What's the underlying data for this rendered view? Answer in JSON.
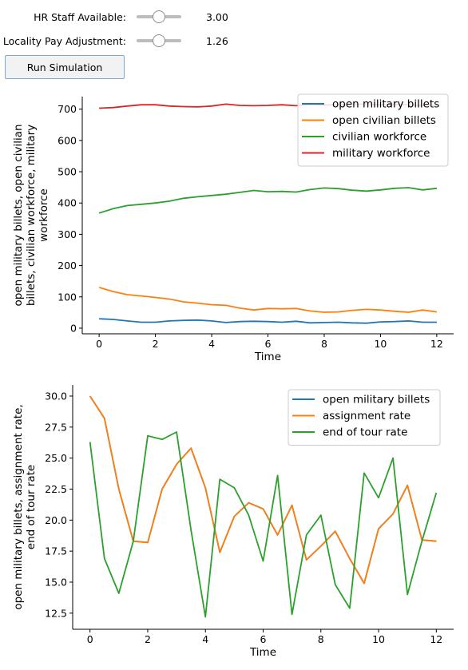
{
  "controls": {
    "hr_staff": {
      "label": "HR Staff Available:",
      "value_text": "3.00",
      "fraction": 0.5
    },
    "locality_pay": {
      "label": "Locality Pay Adjustment:",
      "value_text": "1.26",
      "fraction": 0.5
    },
    "run_label": "Run Simulation"
  },
  "colors": {
    "blue": "#1f77b4",
    "orange": "#ff7f0e",
    "green": "#2ca02c",
    "red": "#d62728"
  },
  "chart_data": [
    {
      "type": "line",
      "xlabel": "Time",
      "ylabel_lines": [
        "open military billets, open civilian",
        "billets, civilian workforce, military",
        "workforce"
      ],
      "xlim": [
        -0.6,
        12.6
      ],
      "ylim": [
        -18,
        740
      ],
      "xticks": [
        0,
        2,
        4,
        6,
        8,
        10,
        12
      ],
      "yticks": [
        0,
        100,
        200,
        300,
        400,
        500,
        600,
        700
      ],
      "legend": "top-right",
      "x": [
        0,
        0.5,
        1,
        1.5,
        2,
        2.5,
        3,
        3.5,
        4,
        4.5,
        5,
        5.5,
        6,
        6.5,
        7,
        7.5,
        8,
        8.5,
        9,
        9.5,
        10,
        10.5,
        11,
        11.5,
        12
      ],
      "series": [
        {
          "name": "open military billets",
          "color": "blue",
          "values": [
            30,
            28,
            23,
            19,
            19,
            23,
            25,
            26,
            23,
            18,
            21,
            22,
            21,
            19,
            22,
            17,
            18,
            19,
            17,
            16,
            20,
            21,
            23,
            19,
            19
          ]
        },
        {
          "name": "open civilian billets",
          "color": "orange",
          "values": [
            130,
            117,
            107,
            103,
            98,
            93,
            84,
            80,
            75,
            73,
            64,
            58,
            63,
            62,
            63,
            55,
            51,
            52,
            57,
            60,
            58,
            54,
            51,
            58,
            52
          ]
        },
        {
          "name": "civilian workforce",
          "color": "green",
          "values": [
            368,
            382,
            392,
            396,
            400,
            406,
            415,
            420,
            424,
            428,
            434,
            440,
            436,
            437,
            435,
            443,
            448,
            446,
            441,
            438,
            442,
            447,
            449,
            442,
            447
          ]
        },
        {
          "name": "military workforce",
          "color": "red",
          "values": [
            703,
            705,
            710,
            714,
            714,
            710,
            708,
            707,
            710,
            716,
            712,
            711,
            712,
            714,
            711,
            715,
            713,
            715,
            716,
            716,
            714,
            715,
            714,
            712,
            712
          ]
        }
      ]
    },
    {
      "type": "line",
      "xlabel": "Time",
      "ylabel_lines": [
        "open military billets, assignment rate,",
        "end of tour rate"
      ],
      "xlim": [
        -0.6,
        12.6
      ],
      "ylim": [
        11.2,
        30.9
      ],
      "xticks": [
        0,
        2,
        4,
        6,
        8,
        10,
        12
      ],
      "yticks": [
        12.5,
        15.0,
        17.5,
        20.0,
        22.5,
        25.0,
        27.5,
        30.0
      ],
      "legend": "top-right",
      "x": [
        0,
        0.5,
        1,
        1.5,
        2,
        2.5,
        3,
        3.5,
        4,
        4.5,
        5,
        5.5,
        6,
        6.5,
        7,
        7.5,
        8,
        8.5,
        9,
        9.5,
        10,
        10.5,
        11,
        11.5,
        12
      ],
      "series": [
        {
          "name": "open military billets",
          "color": "blue",
          "values": [
            30.0,
            28.2,
            22.5,
            18.3,
            18.2,
            22.5,
            24.5,
            25.8,
            22.6,
            17.4,
            20.3,
            21.4,
            20.9,
            18.8,
            21.2,
            16.8,
            17.9,
            19.1,
            16.9,
            14.9,
            19.3,
            20.5,
            22.8,
            18.4,
            18.3
          ]
        },
        {
          "name": "assignment rate",
          "color": "orange",
          "values": [
            30.0,
            28.2,
            22.5,
            18.3,
            18.2,
            22.5,
            24.5,
            25.8,
            22.6,
            17.4,
            20.3,
            21.4,
            20.9,
            18.8,
            21.2,
            16.8,
            17.9,
            19.1,
            16.9,
            14.9,
            19.3,
            20.5,
            22.8,
            18.4,
            18.3
          ]
        },
        {
          "name": "end of tour rate",
          "color": "green",
          "values": [
            26.3,
            16.9,
            14.1,
            18.3,
            26.8,
            26.5,
            27.1,
            19.2,
            12.2,
            23.3,
            22.6,
            20.4,
            16.7,
            23.6,
            12.4,
            18.8,
            20.4,
            14.8,
            12.9,
            23.8,
            21.8,
            25.0,
            14.0,
            18.3,
            22.2
          ]
        }
      ]
    }
  ]
}
